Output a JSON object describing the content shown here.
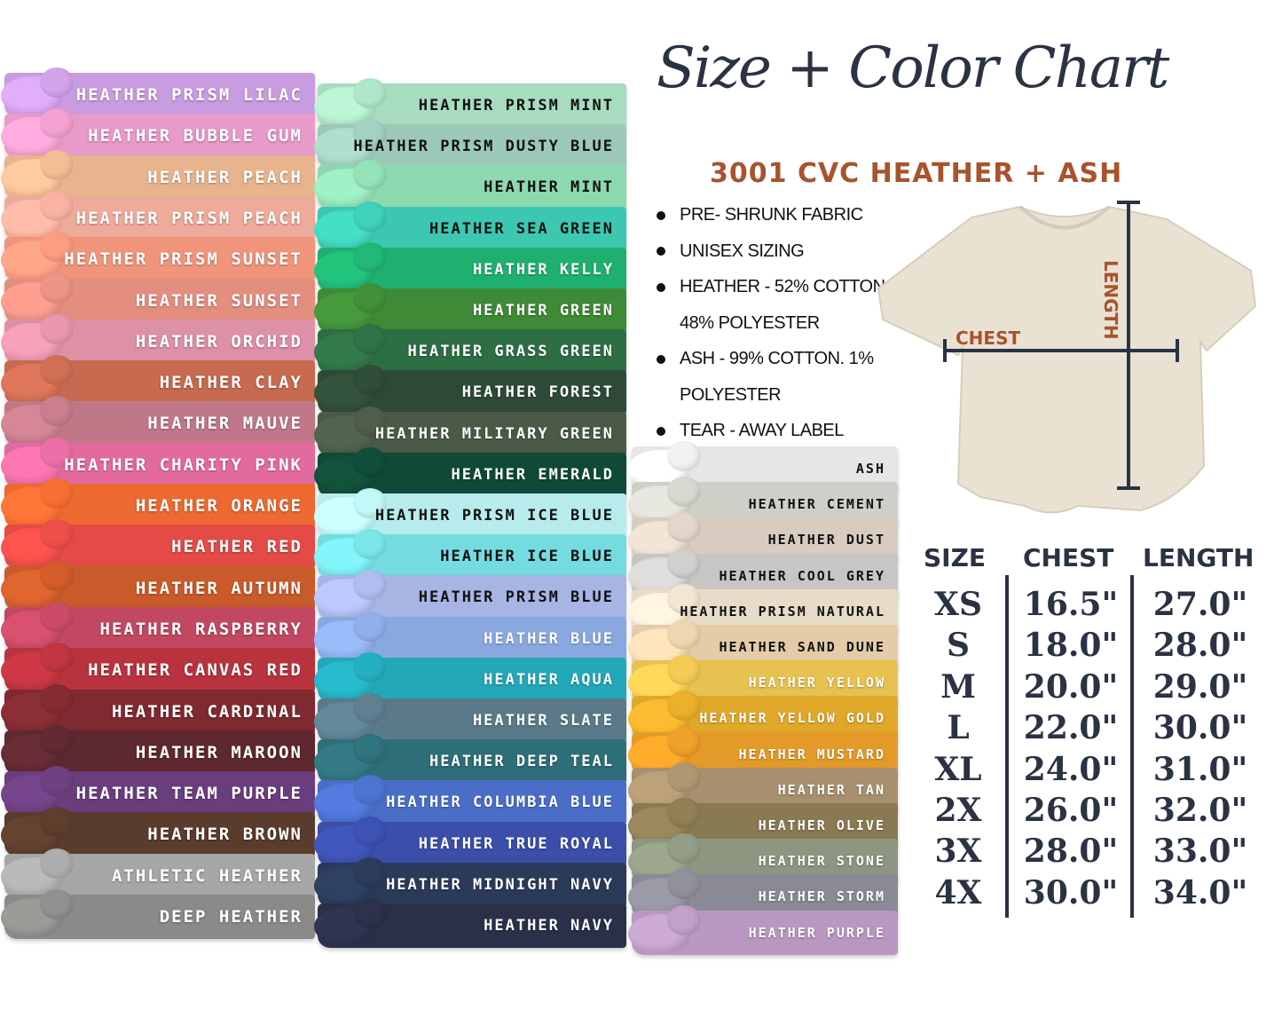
{
  "header": {
    "title": "Size + Color Chart",
    "subtitle": "3001 CVC HEATHER + ASH"
  },
  "features": [
    "PRE- SHRUNK FABRIC",
    "UNISEX SIZING",
    "HEATHER - 52% COTTON.",
    "48% POLYESTER",
    "ASH -  99% COTTON. 1%",
    "POLYESTER",
    "TEAR -  AWAY LABEL"
  ],
  "diagram": {
    "chest_label": "CHEST",
    "length_label": "LENGTH",
    "label_color": "#a8532c",
    "line_color": "#2a3344"
  },
  "size_chart": {
    "headers": [
      "SIZE",
      "CHEST",
      "LENGTH"
    ],
    "rows": [
      [
        "XS",
        "16.5\"",
        "27.0\""
      ],
      [
        "S",
        "18.0\"",
        "28.0\""
      ],
      [
        "M",
        "20.0\"",
        "29.0\""
      ],
      [
        "L",
        "22.0\"",
        "30.0\""
      ],
      [
        "XL",
        "24.0\"",
        "31.0\""
      ],
      [
        "2X",
        "26.0\"",
        "32.0\""
      ],
      [
        "3X",
        "28.0\"",
        "33.0\""
      ],
      [
        "4X",
        "30.0\"",
        "34.0\""
      ]
    ]
  },
  "colors": {
    "left": [
      {
        "name": "HEATHER PRISM LILAC",
        "hex": "#c99be0",
        "text": "#ffffff"
      },
      {
        "name": "HEATHER BUBBLE GUM",
        "hex": "#e89ac8",
        "text": "#ffffff"
      },
      {
        "name": "HEATHER PEACH",
        "hex": "#e8b48e",
        "text": "#ffffff"
      },
      {
        "name": "HEATHER PRISM PEACH",
        "hex": "#eeaa9a",
        "text": "#ffffff"
      },
      {
        "name": "HEATHER PRISM SUNSET",
        "hex": "#f0957c",
        "text": "#ffffff"
      },
      {
        "name": "HEATHER SUNSET",
        "hex": "#e48e80",
        "text": "#ffffff"
      },
      {
        "name": "HEATHER ORCHID",
        "hex": "#dd90a6",
        "text": "#ffffff"
      },
      {
        "name": "HEATHER CLAY",
        "hex": "#c76a50",
        "text": "#ffffff"
      },
      {
        "name": "HEATHER MAUVE",
        "hex": "#c07888",
        "text": "#ffffff"
      },
      {
        "name": "HEATHER CHARITY PINK",
        "hex": "#e36a9f",
        "text": "#ffffff"
      },
      {
        "name": "HEATHER ORANGE",
        "hex": "#ec6a30",
        "text": "#ffffff"
      },
      {
        "name": "HEATHER RED",
        "hex": "#e44a46",
        "text": "#ffffff"
      },
      {
        "name": "HEATHER AUTUMN",
        "hex": "#c95a2a",
        "text": "#ffffff"
      },
      {
        "name": "HEATHER RASPBERRY",
        "hex": "#c24862",
        "text": "#ffffff"
      },
      {
        "name": "HEATHER CANVAS RED",
        "hex": "#b8333e",
        "text": "#ffffff"
      },
      {
        "name": "HEATHER CARDINAL",
        "hex": "#7e2a30",
        "text": "#ffffff"
      },
      {
        "name": "HEATHER MAROON",
        "hex": "#5e2830",
        "text": "#ffffff"
      },
      {
        "name": "HEATHER TEAM PURPLE",
        "hex": "#6a3e7c",
        "text": "#ffffff"
      },
      {
        "name": "HEATHER BROWN",
        "hex": "#5a3c2c",
        "text": "#ffffff"
      },
      {
        "name": "ATHLETIC HEATHER",
        "hex": "#a6a6a6",
        "text": "#ffffff"
      },
      {
        "name": "DEEP HEATHER",
        "hex": "#8a8a88",
        "text": "#ffffff"
      }
    ],
    "middle": [
      {
        "name": "HEATHER PRISM MINT",
        "hex": "#a8dcc0",
        "text": "#111111"
      },
      {
        "name": "HEATHER PRISM DUSTY BLUE",
        "hex": "#9cc8b8",
        "text": "#111111"
      },
      {
        "name": "HEATHER MINT",
        "hex": "#8ed8b0",
        "text": "#111111"
      },
      {
        "name": "HEATHER SEA GREEN",
        "hex": "#3cc8b0",
        "text": "#111111"
      },
      {
        "name": "HEATHER KELLY",
        "hex": "#1fb070",
        "text": "#ffffff"
      },
      {
        "name": "HEATHER GREEN",
        "hex": "#3e8a36",
        "text": "#ffffff"
      },
      {
        "name": "HEATHER GRASS GREEN",
        "hex": "#2e6e44",
        "text": "#ffffff"
      },
      {
        "name": "HEATHER FOREST",
        "hex": "#2e4a36",
        "text": "#ffffff"
      },
      {
        "name": "HEATHER MILITARY GREEN",
        "hex": "#4a5a46",
        "text": "#ffffff"
      },
      {
        "name": "HEATHER EMERALD",
        "hex": "#104a36",
        "text": "#ffffff"
      },
      {
        "name": "HEATHER PRISM ICE BLUE",
        "hex": "#b8ecec",
        "text": "#111111"
      },
      {
        "name": "HEATHER ICE BLUE",
        "hex": "#74dce0",
        "text": "#111111"
      },
      {
        "name": "HEATHER PRISM BLUE",
        "hex": "#a8b4e4",
        "text": "#111111"
      },
      {
        "name": "HEATHER BLUE",
        "hex": "#8aa8e0",
        "text": "#ffffff"
      },
      {
        "name": "HEATHER AQUA",
        "hex": "#22a8b8",
        "text": "#ffffff"
      },
      {
        "name": "HEATHER SLATE",
        "hex": "#5a7a8a",
        "text": "#ffffff"
      },
      {
        "name": "HEATHER DEEP TEAL",
        "hex": "#2e6e78",
        "text": "#ffffff"
      },
      {
        "name": "HEATHER COLUMBIA BLUE",
        "hex": "#4a6ec8",
        "text": "#ffffff"
      },
      {
        "name": "HEATHER TRUE ROYAL",
        "hex": "#3a4eaa",
        "text": "#ffffff"
      },
      {
        "name": "HEATHER MIDNIGHT NAVY",
        "hex": "#2a3a58",
        "text": "#ffffff"
      },
      {
        "name": "HEATHER NAVY",
        "hex": "#2a3048",
        "text": "#ffffff"
      }
    ],
    "right": [
      {
        "name": "ASH",
        "hex": "#e6e6e6",
        "text": "#111111"
      },
      {
        "name": "HEATHER CEMENT",
        "hex": "#cfcfc8",
        "text": "#111111"
      },
      {
        "name": "HEATHER DUST",
        "hex": "#d8ccc0",
        "text": "#111111"
      },
      {
        "name": "HEATHER COOL GREY",
        "hex": "#c8c6c4",
        "text": "#111111"
      },
      {
        "name": "HEATHER PRISM NATURAL",
        "hex": "#e6dcc8",
        "text": "#111111"
      },
      {
        "name": "HEATHER SAND DUNE",
        "hex": "#e4cca8",
        "text": "#111111"
      },
      {
        "name": "HEATHER YELLOW",
        "hex": "#e8c250",
        "text": "#ffffff"
      },
      {
        "name": "HEATHER YELLOW GOLD",
        "hex": "#e0a82a",
        "text": "#ffffff"
      },
      {
        "name": "HEATHER MUSTARD",
        "hex": "#e49a28",
        "text": "#ffffff"
      },
      {
        "name": "HEATHER TAN",
        "hex": "#a8906e",
        "text": "#ffffff"
      },
      {
        "name": "HEATHER OLIVE",
        "hex": "#8a7a52",
        "text": "#ffffff"
      },
      {
        "name": "HEATHER STONE",
        "hex": "#8c9680",
        "text": "#ffffff"
      },
      {
        "name": "HEATHER STORM",
        "hex": "#8a8a96",
        "text": "#ffffff"
      },
      {
        "name": "HEATHER PURPLE",
        "hex": "#b898c0",
        "text": "#ffffff"
      }
    ]
  }
}
